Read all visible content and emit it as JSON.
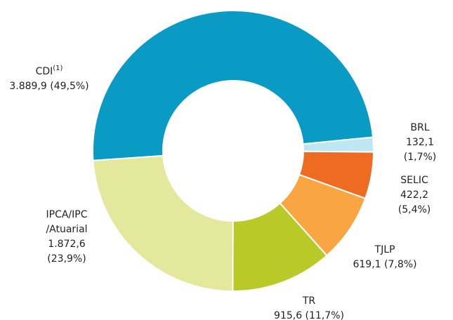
{
  "chart_data": {
    "type": "donut",
    "categories": [
      "CDI",
      "BRL",
      "SELIC",
      "TJLP",
      "TR",
      "IPCA/IPC /Atuarial"
    ],
    "values": [
      3889.9,
      132.1,
      422.2,
      619.1,
      915.6,
      1872.6
    ],
    "value_labels": [
      "3.889,9 (49,5%)",
      "132,1 (1,7%)",
      "422,2 (5,4%)",
      "619,1 (7,8%)",
      "915,6 (11,7%)",
      "1.872,6 (23,9%)"
    ],
    "colors": [
      "#0a9bc4",
      "#bfe6f3",
      "#ee6b22",
      "#f9a541",
      "#b9c928",
      "#e3e89d"
    ],
    "annotations": [
      {
        "text": "(1)",
        "category": 0
      }
    ]
  }
}
